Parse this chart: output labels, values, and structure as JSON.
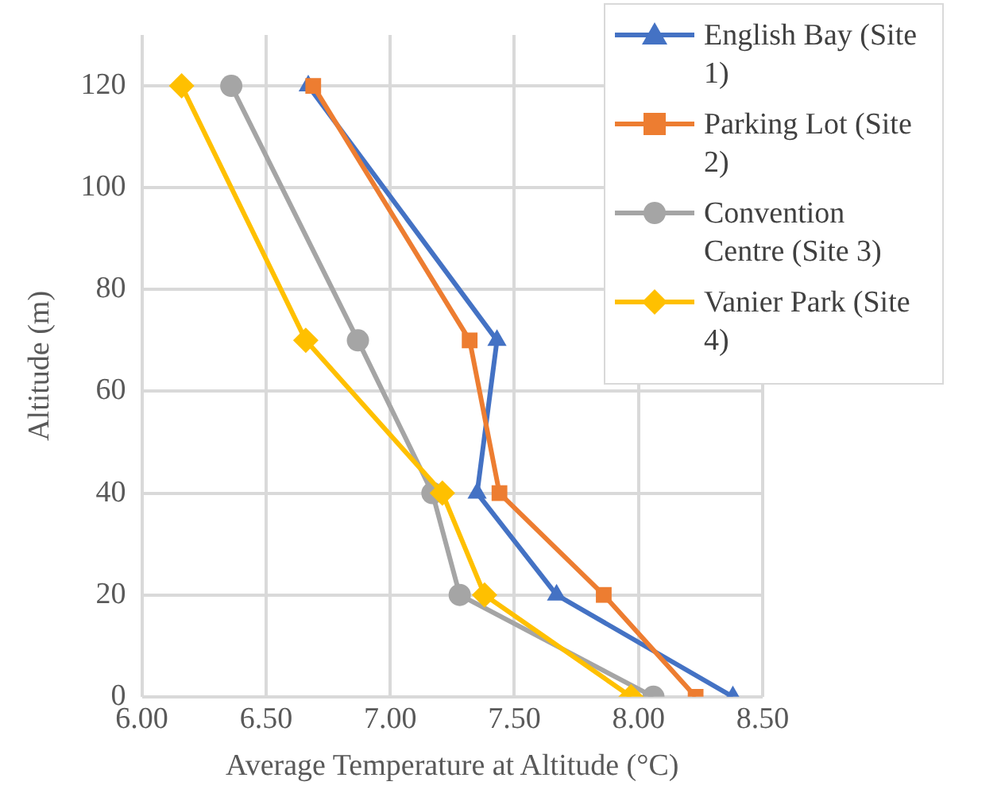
{
  "chart_data": {
    "type": "line",
    "xlabel": "Average Temperature at Altitude (°C)",
    "ylabel": "Altitude (m)",
    "xlim": [
      6,
      8.5
    ],
    "xticks": [
      {
        "value": 6,
        "label": "6.00"
      },
      {
        "value": 6.5,
        "label": "6.50"
      },
      {
        "value": 7,
        "label": "7.00"
      },
      {
        "value": 7.5,
        "label": "7.50"
      },
      {
        "value": 8,
        "label": "8.00"
      },
      {
        "value": 8.5,
        "label": "8.50"
      }
    ],
    "ylim": [
      0,
      130
    ],
    "yticks": [
      0,
      20,
      40,
      60,
      80,
      100,
      120
    ],
    "grid": true,
    "legend": "top right",
    "line_style": "solid",
    "series": [
      {
        "name": "English Bay (Site 1)",
        "color": "#4472c4",
        "marker": "triangle",
        "x": [
          8.38,
          7.67,
          7.35,
          7.43,
          6.67
        ],
        "values": [
          0,
          20,
          40,
          70,
          120
        ]
      },
      {
        "name": "Parking Lot (Site 2)",
        "color": "#ed7d31",
        "marker": "square",
        "x": [
          8.23,
          7.86,
          7.44,
          7.32,
          6.69
        ],
        "values": [
          0,
          20,
          40,
          70,
          120
        ]
      },
      {
        "name": "Convention Centre (Site 3)",
        "color": "#a5a5a5",
        "marker": "circle",
        "x": [
          8.06,
          7.28,
          7.17,
          6.87,
          6.36
        ],
        "values": [
          0,
          20,
          40,
          70,
          120
        ]
      },
      {
        "name": "Vanier Park (Site 4)",
        "color": "#ffc000",
        "marker": "diamond",
        "x": [
          7.97,
          7.38,
          7.21,
          6.66,
          6.16
        ],
        "values": [
          0,
          20,
          40,
          70,
          120
        ]
      }
    ]
  }
}
